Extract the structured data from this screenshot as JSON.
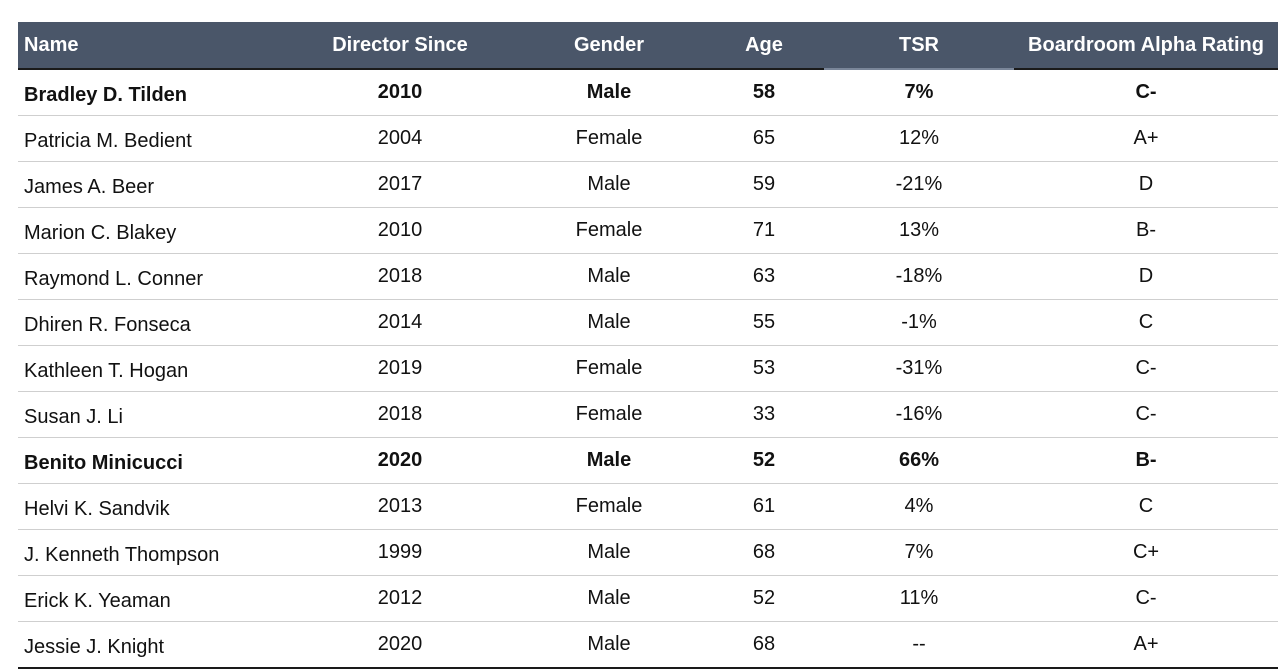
{
  "table": {
    "headers": [
      "Name",
      "Director Since",
      "Gender",
      "Age",
      "TSR",
      "Boardroom Alpha Rating"
    ],
    "rows": [
      {
        "name": "Bradley D. Tilden",
        "since": "2010",
        "gender": "Male",
        "age": "58",
        "tsr": "7%",
        "rating": "C-",
        "bold": true
      },
      {
        "name": "Patricia M. Bedient",
        "since": "2004",
        "gender": "Female",
        "age": "65",
        "tsr": "12%",
        "rating": "A+",
        "bold": false
      },
      {
        "name": "James A. Beer",
        "since": "2017",
        "gender": "Male",
        "age": "59",
        "tsr": "-21%",
        "rating": "D",
        "bold": false
      },
      {
        "name": "Marion C. Blakey",
        "since": "2010",
        "gender": "Female",
        "age": "71",
        "tsr": "13%",
        "rating": "B-",
        "bold": false
      },
      {
        "name": "Raymond L. Conner",
        "since": "2018",
        "gender": "Male",
        "age": "63",
        "tsr": "-18%",
        "rating": "D",
        "bold": false
      },
      {
        "name": "Dhiren R. Fonseca",
        "since": "2014",
        "gender": "Male",
        "age": "55",
        "tsr": "-1%",
        "rating": "C",
        "bold": false
      },
      {
        "name": "Kathleen T. Hogan",
        "since": "2019",
        "gender": "Female",
        "age": "53",
        "tsr": "-31%",
        "rating": "C-",
        "bold": false
      },
      {
        "name": "Susan J. Li",
        "since": "2018",
        "gender": "Female",
        "age": "33",
        "tsr": "-16%",
        "rating": "C-",
        "bold": false
      },
      {
        "name": "Benito Minicucci",
        "since": "2020",
        "gender": "Male",
        "age": "52",
        "tsr": "66%",
        "rating": "B-",
        "bold": true
      },
      {
        "name": "Helvi K. Sandvik",
        "since": "2013",
        "gender": "Female",
        "age": "61",
        "tsr": "4%",
        "rating": "C",
        "bold": false
      },
      {
        "name": "J. Kenneth Thompson",
        "since": "1999",
        "gender": "Male",
        "age": "68",
        "tsr": "7%",
        "rating": "C+",
        "bold": false
      },
      {
        "name": "Erick K. Yeaman",
        "since": "2012",
        "gender": "Male",
        "age": "52",
        "tsr": "11%",
        "rating": "C-",
        "bold": false
      },
      {
        "name": "Jessie J. Knight",
        "since": "2020",
        "gender": "Male",
        "age": "68",
        "tsr": "--",
        "rating": "A+",
        "bold": false
      }
    ]
  },
  "colors": {
    "header_bg": "#4a5669",
    "header_text": "#ffffff"
  }
}
